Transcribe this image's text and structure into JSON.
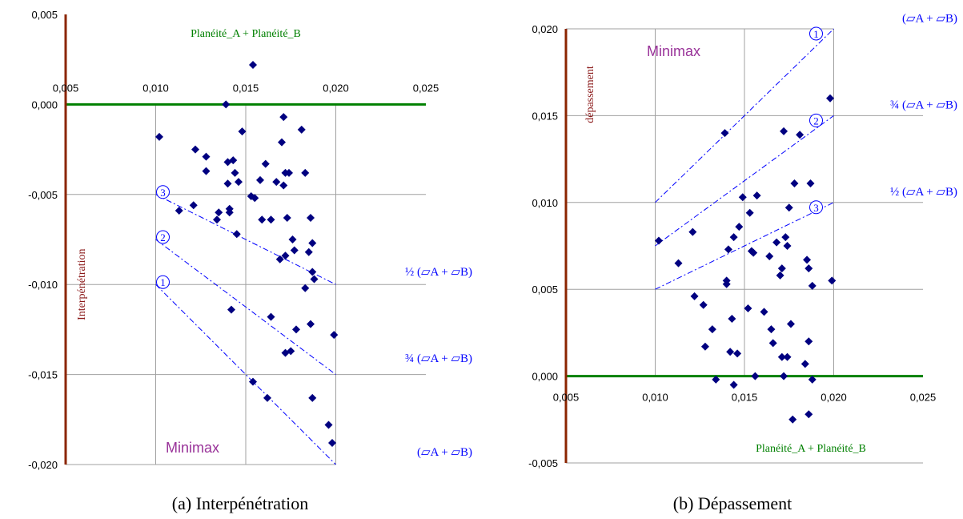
{
  "colors": {
    "grid": "#a0a0a0",
    "axis_brown": "#8b2500",
    "zero_line": "#008000",
    "marker": "#000080",
    "bounds": "#0000ff",
    "minimax": "#993399"
  },
  "chart_data": [
    {
      "type": "scatter",
      "title": "",
      "caption": "(a) Interpénétration",
      "xlabel": "Planéité_A + Planéité_B",
      "ylabel": "Interpénétration",
      "annotation": "Minimax",
      "xlim": [
        0.005,
        0.025
      ],
      "ylim": [
        -0.02,
        0.005
      ],
      "x_ticks": [
        "0,005",
        "0,010",
        "0,015",
        "0,020",
        "0,025"
      ],
      "y_ticks": [
        "0,005",
        "0,000",
        "-0,005",
        "-0,010",
        "-0,015",
        "-0,020"
      ],
      "bound_lines": [
        {
          "circle": "3",
          "label": "½ (▱A + ▱B)",
          "x": [
            0.01,
            0.02
          ],
          "y": [
            -0.005,
            -0.01
          ]
        },
        {
          "circle": "2",
          "label": "¾ (▱A + ▱B)",
          "x": [
            0.01,
            0.02
          ],
          "y": [
            -0.0075,
            -0.015
          ]
        },
        {
          "circle": "1",
          "label": "(▱A + ▱B)",
          "x": [
            0.01,
            0.02
          ],
          "y": [
            -0.01,
            -0.02
          ]
        }
      ],
      "points": [
        [
          0.0102,
          -0.0018
        ],
        [
          0.0113,
          -0.0059
        ],
        [
          0.0121,
          -0.0056
        ],
        [
          0.0122,
          -0.0025
        ],
        [
          0.0128,
          -0.0037
        ],
        [
          0.0128,
          -0.0029
        ],
        [
          0.0134,
          -0.0064
        ],
        [
          0.0135,
          -0.006
        ],
        [
          0.0139,
          0.0
        ],
        [
          0.014,
          -0.0044
        ],
        [
          0.014,
          -0.0032
        ],
        [
          0.0141,
          -0.0058
        ],
        [
          0.0141,
          -0.006
        ],
        [
          0.0142,
          -0.0114
        ],
        [
          0.0143,
          -0.0031
        ],
        [
          0.0144,
          -0.0038
        ],
        [
          0.0145,
          -0.0072
        ],
        [
          0.0146,
          -0.0043
        ],
        [
          0.0148,
          -0.0015
        ],
        [
          0.0153,
          -0.0051
        ],
        [
          0.0154,
          0.0022
        ],
        [
          0.0154,
          -0.0154
        ],
        [
          0.0155,
          -0.0052
        ],
        [
          0.0158,
          -0.0042
        ],
        [
          0.0159,
          -0.0064
        ],
        [
          0.0161,
          -0.0033
        ],
        [
          0.0162,
          -0.0163
        ],
        [
          0.0164,
          -0.0064
        ],
        [
          0.0164,
          -0.0118
        ],
        [
          0.0167,
          -0.0043
        ],
        [
          0.0169,
          -0.0086
        ],
        [
          0.017,
          -0.0021
        ],
        [
          0.0171,
          -0.0007
        ],
        [
          0.0171,
          -0.0045
        ],
        [
          0.0172,
          -0.0038
        ],
        [
          0.0172,
          -0.0084
        ],
        [
          0.0172,
          -0.0138
        ],
        [
          0.0173,
          -0.0063
        ],
        [
          0.0174,
          -0.0038
        ],
        [
          0.0175,
          -0.0137
        ],
        [
          0.0176,
          -0.0075
        ],
        [
          0.0177,
          -0.0081
        ],
        [
          0.0178,
          -0.0125
        ],
        [
          0.0181,
          -0.0014
        ],
        [
          0.0183,
          -0.0102
        ],
        [
          0.0183,
          -0.0038
        ],
        [
          0.0185,
          -0.0082
        ],
        [
          0.0186,
          -0.0122
        ],
        [
          0.0186,
          -0.0063
        ],
        [
          0.0187,
          -0.0077
        ],
        [
          0.0187,
          -0.0163
        ],
        [
          0.0187,
          -0.0093
        ],
        [
          0.0188,
          -0.0097
        ],
        [
          0.0196,
          -0.0178
        ],
        [
          0.0198,
          -0.0188
        ],
        [
          0.0199,
          -0.0128
        ]
      ]
    },
    {
      "type": "scatter",
      "title": "",
      "caption": "(b) Dépassement",
      "xlabel": "Planéité_A + Planéité_B",
      "ylabel": "dépassement",
      "annotation": "Minimax",
      "xlim": [
        0.005,
        0.025
      ],
      "ylim": [
        -0.005,
        0.02
      ],
      "x_ticks": [
        "0,005",
        "0,010",
        "0,015",
        "0,020",
        "0,025"
      ],
      "y_ticks": [
        "0,020",
        "0,015",
        "0,010",
        "0,005",
        "0,000",
        "-0,005"
      ],
      "bound_lines": [
        {
          "circle": "1",
          "label": "(▱A + ▱B)",
          "x": [
            0.01,
            0.02
          ],
          "y": [
            0.01,
            0.02
          ]
        },
        {
          "circle": "2",
          "label": "¾ (▱A + ▱B)",
          "x": [
            0.01,
            0.02
          ],
          "y": [
            0.0075,
            0.015
          ]
        },
        {
          "circle": "3",
          "label": "½ (▱A + ▱B)",
          "x": [
            0.01,
            0.02
          ],
          "y": [
            0.005,
            0.01
          ]
        }
      ],
      "points": [
        [
          0.0102,
          0.0078
        ],
        [
          0.0113,
          0.0065
        ],
        [
          0.0121,
          0.0083
        ],
        [
          0.0122,
          0.0046
        ],
        [
          0.0127,
          0.0041
        ],
        [
          0.0128,
          0.0017
        ],
        [
          0.0132,
          0.0027
        ],
        [
          0.0134,
          -0.0002
        ],
        [
          0.0139,
          0.014
        ],
        [
          0.014,
          0.0055
        ],
        [
          0.014,
          0.0053
        ],
        [
          0.0141,
          0.0073
        ],
        [
          0.0142,
          0.0014
        ],
        [
          0.0143,
          0.0033
        ],
        [
          0.0144,
          -0.0005
        ],
        [
          0.0144,
          0.008
        ],
        [
          0.0146,
          0.0013
        ],
        [
          0.0147,
          0.0086
        ],
        [
          0.0149,
          0.0103
        ],
        [
          0.0152,
          0.0039
        ],
        [
          0.0153,
          0.0094
        ],
        [
          0.0154,
          0.0072
        ],
        [
          0.0155,
          0.0071
        ],
        [
          0.0156,
          0.0
        ],
        [
          0.0157,
          0.0104
        ],
        [
          0.0161,
          0.0037
        ],
        [
          0.0164,
          0.0069
        ],
        [
          0.0165,
          0.0027
        ],
        [
          0.0166,
          0.0019
        ],
        [
          0.0168,
          0.0077
        ],
        [
          0.017,
          0.0058
        ],
        [
          0.0171,
          0.0062
        ],
        [
          0.0171,
          0.0011
        ],
        [
          0.0172,
          0.0141
        ],
        [
          0.0172,
          0.0
        ],
        [
          0.0173,
          0.008
        ],
        [
          0.0174,
          0.0075
        ],
        [
          0.0174,
          0.0011
        ],
        [
          0.0175,
          0.0097
        ],
        [
          0.0176,
          0.003
        ],
        [
          0.0177,
          -0.0025
        ],
        [
          0.0178,
          0.0111
        ],
        [
          0.0181,
          0.0139
        ],
        [
          0.0184,
          0.0007
        ],
        [
          0.0185,
          0.0067
        ],
        [
          0.0186,
          0.0062
        ],
        [
          0.0186,
          0.002
        ],
        [
          0.0186,
          -0.0022
        ],
        [
          0.0187,
          0.0111
        ],
        [
          0.0188,
          0.0052
        ],
        [
          0.0188,
          -0.0002
        ],
        [
          0.0199,
          0.0055
        ],
        [
          0.0198,
          0.016
        ]
      ]
    }
  ]
}
